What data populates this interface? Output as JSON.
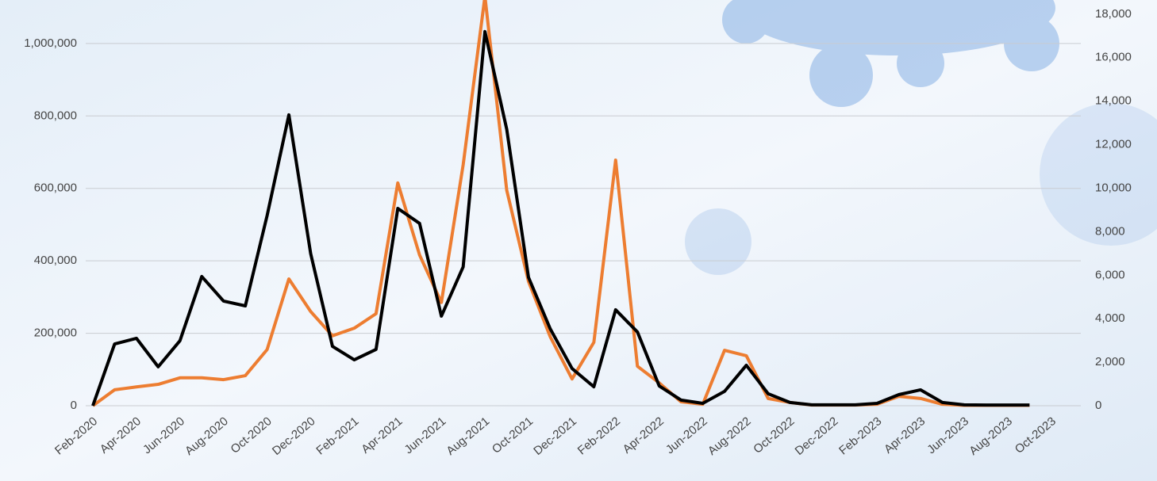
{
  "chart_data": {
    "type": "line",
    "categories": [
      "Feb-2020",
      null,
      "Apr-2020",
      null,
      "Jun-2020",
      null,
      "Aug-2020",
      null,
      "Oct-2020",
      null,
      "Dec-2020",
      null,
      "Feb-2021",
      null,
      "Apr-2021",
      null,
      "Jun-2021",
      null,
      "Aug-2021",
      null,
      "Oct-2021",
      null,
      "Dec-2021",
      null,
      "Feb-2022",
      null,
      "Apr-2022",
      null,
      "Jun-2022",
      null,
      "Aug-2022",
      null,
      "Oct-2022",
      null,
      "Dec-2022",
      null,
      "Feb-2023",
      null,
      "Apr-2023",
      null,
      "Jun-2023",
      null,
      "Aug-2023",
      null,
      "Oct-2023"
    ],
    "series": [
      {
        "color": "#ed7d31",
        "axis": "y",
        "values": [
          0,
          44000,
          52000,
          59000,
          77000,
          77000,
          72000,
          83000,
          155000,
          350000,
          260000,
          193000,
          214000,
          254000,
          615000,
          416000,
          285000,
          665000,
          1130000,
          595000,
          343000,
          190000,
          74000,
          175000,
          678000,
          109000,
          63000,
          11000,
          4000,
          153000,
          138000,
          20000,
          9000,
          2000,
          2000,
          2000,
          4000,
          26000,
          20000,
          4000,
          1000,
          1000,
          1000,
          1000,
          null
        ]
      },
      {
        "color": "#000000",
        "axis": "y2",
        "values": [
          0,
          2840,
          3100,
          1790,
          2990,
          5940,
          4810,
          4590,
          8740,
          13370,
          6990,
          2730,
          2110,
          2590,
          9070,
          8380,
          4120,
          6380,
          17200,
          12710,
          5900,
          3530,
          1710,
          870,
          4410,
          3390,
          910,
          260,
          110,
          660,
          1860,
          550,
          150,
          40,
          40,
          40,
          110,
          510,
          730,
          150,
          40,
          30,
          30,
          30,
          null
        ]
      }
    ],
    "ylim": [
      0,
      1120000
    ],
    "yticks": [
      0,
      {
        "value": 200000,
        "label": "200,000"
      },
      {
        "value": 400000,
        "label": "400,000"
      },
      {
        "value": 600000,
        "label": "600,000"
      },
      {
        "value": 800000,
        "label": "800,000"
      },
      {
        "value": 1000000,
        "label": "1,000,000"
      }
    ],
    "y2lim": [
      0,
      18650
    ],
    "y2ticks": [
      0,
      {
        "value": 2000,
        "label": "2,000"
      },
      {
        "value": 4000,
        "label": "4,000"
      },
      {
        "value": 6000,
        "label": "6,000"
      },
      {
        "value": 8000,
        "label": "8,000"
      },
      {
        "value": 10000,
        "label": "10,000"
      },
      {
        "value": 12000,
        "label": "12,000"
      },
      {
        "value": 14000,
        "label": "14,000"
      },
      {
        "value": 16000,
        "label": "16,000"
      },
      {
        "value": 18000,
        "label": "18,000"
      }
    ],
    "grid": true
  }
}
